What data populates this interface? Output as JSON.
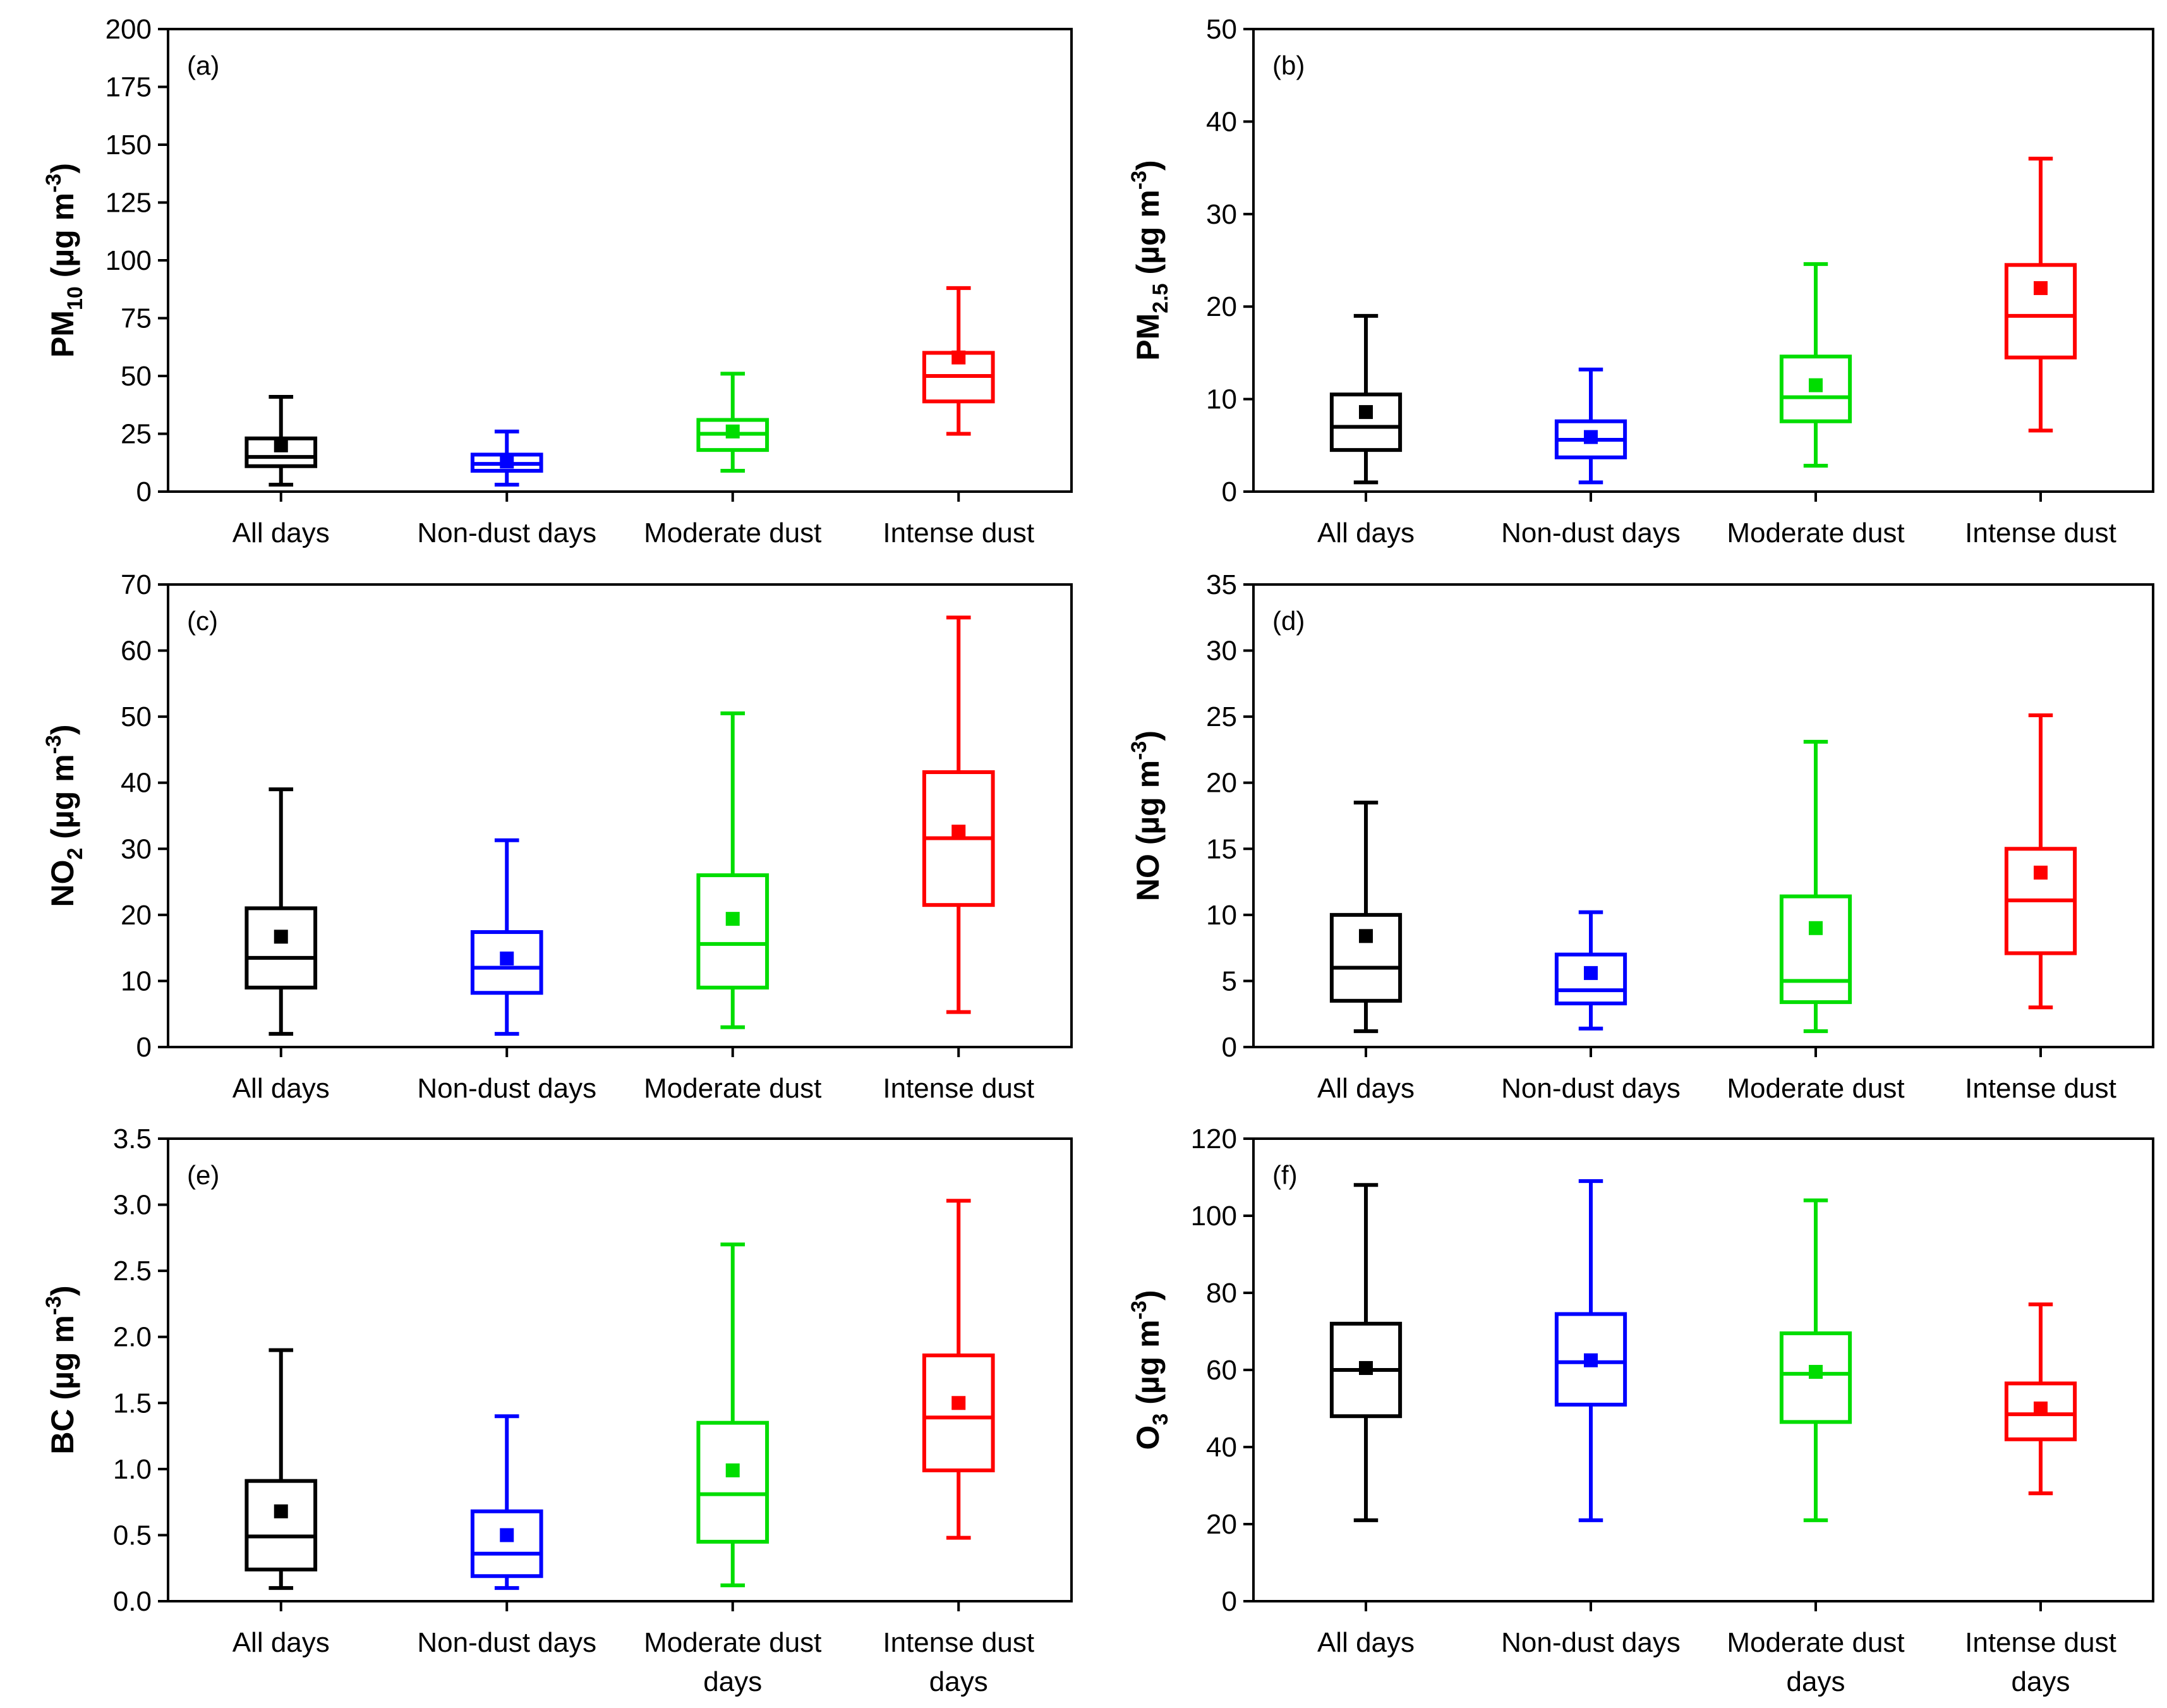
{
  "colors": {
    "all_days": "#000000",
    "non_dust": "#0000FF",
    "moderate": "#00DD00",
    "intense": "#FF0000"
  },
  "chart_data": [
    {
      "type": "box",
      "panel": "(a)",
      "ylabel": {
        "main": "PM",
        "sub": "10",
        "unit": " (µg m",
        "sup": "-3",
        "close": ")"
      },
      "ylim": [
        0,
        200
      ],
      "yticks": [
        0,
        25,
        50,
        75,
        100,
        125,
        150,
        175,
        200
      ],
      "ytick_labels": [
        "0",
        "25",
        "50",
        "75",
        "100",
        "125",
        "150",
        "175",
        "200"
      ],
      "categories": [
        [
          "All days"
        ],
        [
          "Non-dust days"
        ],
        [
          "Moderate dust"
        ],
        [
          "Intense dust"
        ]
      ],
      "boxes": [
        {
          "min": 3,
          "q1": 11,
          "median": 15,
          "q3": 23,
          "max": 41,
          "mean": 20
        },
        {
          "min": 3,
          "q1": 9,
          "median": 12,
          "q3": 16,
          "max": 26,
          "mean": 13
        },
        {
          "min": 9,
          "q1": 18,
          "median": 25,
          "q3": 31,
          "max": 51,
          "mean": 26
        },
        {
          "min": 25,
          "q1": 39,
          "median": 50,
          "q3": 60,
          "max": 88,
          "mean": 58
        }
      ]
    },
    {
      "type": "box",
      "panel": "(b)",
      "ylabel": {
        "main": "PM",
        "sub": "2.5",
        "unit": " (µg m",
        "sup": "-3",
        "close": ")"
      },
      "ylim": [
        0,
        50
      ],
      "yticks": [
        0,
        10,
        20,
        30,
        40,
        50
      ],
      "ytick_labels": [
        "0",
        "10",
        "20",
        "30",
        "40",
        "50"
      ],
      "categories": [
        [
          "All days"
        ],
        [
          "Non-dust days"
        ],
        [
          "Moderate dust"
        ],
        [
          "Intense dust"
        ]
      ],
      "boxes": [
        {
          "min": 1,
          "q1": 4.5,
          "median": 7,
          "q3": 10.5,
          "max": 19,
          "mean": 8.6
        },
        {
          "min": 1,
          "q1": 3.7,
          "median": 5.6,
          "q3": 7.6,
          "max": 13.2,
          "mean": 5.9
        },
        {
          "min": 2.8,
          "q1": 7.6,
          "median": 10.2,
          "q3": 14.6,
          "max": 24.6,
          "mean": 11.5
        },
        {
          "min": 6.6,
          "q1": 14.5,
          "median": 19,
          "q3": 24.5,
          "max": 36,
          "mean": 22
        }
      ]
    },
    {
      "type": "box",
      "panel": "(c)",
      "ylabel": {
        "main": "NO",
        "sub": "2",
        "unit": " (µg m",
        "sup": "-3",
        "close": ")"
      },
      "ylim": [
        0,
        70
      ],
      "yticks": [
        0,
        10,
        20,
        30,
        40,
        50,
        60,
        70
      ],
      "ytick_labels": [
        "0",
        "10",
        "20",
        "30",
        "40",
        "50",
        "60",
        "70"
      ],
      "categories": [
        [
          "All days"
        ],
        [
          "Non-dust days"
        ],
        [
          "Moderate dust"
        ],
        [
          "Intense dust"
        ]
      ],
      "boxes": [
        {
          "min": 2,
          "q1": 9,
          "median": 13.5,
          "q3": 21,
          "max": 39,
          "mean": 16.7
        },
        {
          "min": 2,
          "q1": 8.2,
          "median": 12,
          "q3": 17.4,
          "max": 31.3,
          "mean": 13.4
        },
        {
          "min": 3,
          "q1": 9,
          "median": 15.6,
          "q3": 26,
          "max": 50.5,
          "mean": 19.4
        },
        {
          "min": 5.3,
          "q1": 21.5,
          "median": 31.6,
          "q3": 41.6,
          "max": 65,
          "mean": 32.6
        }
      ]
    },
    {
      "type": "box",
      "panel": "(d)",
      "ylabel": {
        "main": "NO",
        "sub": "",
        "unit": " (µg m",
        "sup": "-3",
        "close": ")"
      },
      "ylim": [
        0,
        35
      ],
      "yticks": [
        0,
        5,
        10,
        15,
        20,
        25,
        30,
        35
      ],
      "ytick_labels": [
        "0",
        "5",
        "10",
        "15",
        "20",
        "25",
        "30",
        "35"
      ],
      "categories": [
        [
          "All days"
        ],
        [
          "Non-dust days"
        ],
        [
          "Moderate dust"
        ],
        [
          "Intense dust"
        ]
      ],
      "boxes": [
        {
          "min": 1.2,
          "q1": 3.5,
          "median": 6,
          "q3": 10,
          "max": 18.5,
          "mean": 8.4
        },
        {
          "min": 1.4,
          "q1": 3.3,
          "median": 4.3,
          "q3": 7,
          "max": 10.2,
          "mean": 5.6
        },
        {
          "min": 1.2,
          "q1": 3.4,
          "median": 5,
          "q3": 11.4,
          "max": 23.1,
          "mean": 9
        },
        {
          "min": 3,
          "q1": 7.1,
          "median": 11.1,
          "q3": 15,
          "max": 25.1,
          "mean": 13.2
        }
      ]
    },
    {
      "type": "box",
      "panel": "(e)",
      "ylabel": {
        "main": "BC",
        "sub": "",
        "unit": " (µg m",
        "sup": "-3",
        "close": ")"
      },
      "ylim": [
        0,
        3.5
      ],
      "yticks": [
        0,
        0.5,
        1,
        1.5,
        2,
        2.5,
        3,
        3.5
      ],
      "ytick_labels": [
        "0.0",
        "0.5",
        "1.0",
        "1.5",
        "2.0",
        "2.5",
        "3.0",
        "3.5"
      ],
      "categories": [
        [
          "All days"
        ],
        [
          "Non-dust days"
        ],
        [
          "Moderate dust",
          "days"
        ],
        [
          "Intense dust",
          "days"
        ]
      ],
      "boxes": [
        {
          "min": 0.1,
          "q1": 0.24,
          "median": 0.49,
          "q3": 0.91,
          "max": 1.9,
          "mean": 0.68
        },
        {
          "min": 0.1,
          "q1": 0.19,
          "median": 0.36,
          "q3": 0.68,
          "max": 1.4,
          "mean": 0.5
        },
        {
          "min": 0.12,
          "q1": 0.45,
          "median": 0.81,
          "q3": 1.35,
          "max": 2.7,
          "mean": 0.99
        },
        {
          "min": 0.48,
          "q1": 0.99,
          "median": 1.39,
          "q3": 1.86,
          "max": 3.03,
          "mean": 1.5
        }
      ]
    },
    {
      "type": "box",
      "panel": "(f)",
      "ylabel": {
        "main": "O",
        "sub": "3",
        "unit": " (µg m",
        "sup": "-3",
        "close": ")"
      },
      "ylim": [
        0,
        120
      ],
      "yticks": [
        0,
        20,
        40,
        60,
        80,
        100,
        120
      ],
      "ytick_labels": [
        "0",
        "20",
        "40",
        "60",
        "80",
        "100",
        "120"
      ],
      "categories": [
        [
          "All days"
        ],
        [
          "Non-dust days"
        ],
        [
          "Moderate dust",
          "days"
        ],
        [
          "Intense dust",
          "days"
        ]
      ],
      "boxes": [
        {
          "min": 21,
          "q1": 48,
          "median": 60,
          "q3": 72,
          "max": 108,
          "mean": 60.5
        },
        {
          "min": 21,
          "q1": 51,
          "median": 62,
          "q3": 74.5,
          "max": 109,
          "mean": 62.5
        },
        {
          "min": 21,
          "q1": 46.5,
          "median": 59,
          "q3": 69.5,
          "max": 104,
          "mean": 59.5
        },
        {
          "min": 28,
          "q1": 42,
          "median": 48.5,
          "q3": 56.5,
          "max": 77,
          "mean": 50
        }
      ]
    }
  ]
}
